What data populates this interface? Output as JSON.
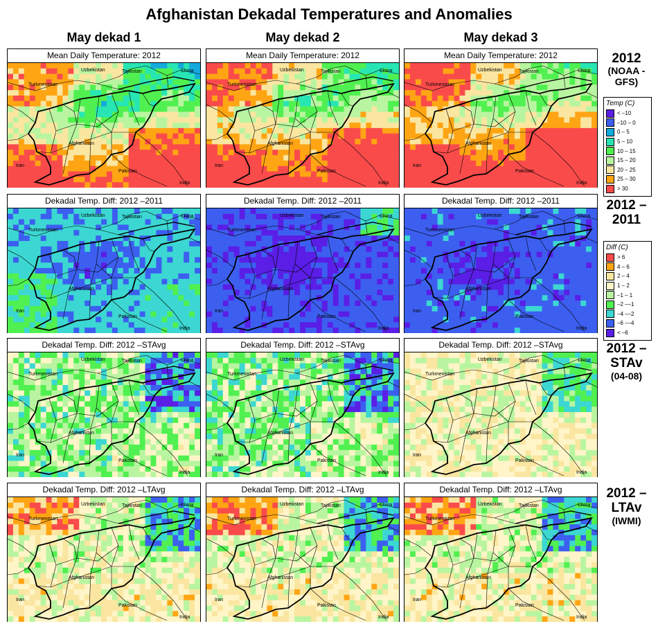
{
  "title": "Afghanistan Dekadal Temperatures and Anomalies",
  "columns": [
    "May dekad 1",
    "May dekad 2",
    "May dekad 3"
  ],
  "rows": [
    {
      "panel_title": "Mean Daily Temperature: 2012",
      "label_main": "2012",
      "label_sub": "(NOAA -GFS)"
    },
    {
      "panel_title": "Dekadal Temp. Diff: 2012 –2011",
      "label_main": "2012 –2011",
      "label_sub": ""
    },
    {
      "panel_title": "Dekadal Temp. Diff: 2012 –STAvg",
      "label_main": "2012 –STAv",
      "label_sub": "(04-08)"
    },
    {
      "panel_title": "Dekadal Temp. Diff: 2012 –LTAvg",
      "label_main": "2012 –LTAv",
      "label_sub": "(IWMI)"
    }
  ],
  "map_labels": {
    "uzbekistan": "Uzbekistan",
    "tajikistan": "Tajikistan",
    "china": "China",
    "turkmenistan": "Turkmenistan",
    "afghanistan": "Afghanistan",
    "iran": "Iran",
    "pakistan": "Pakistan",
    "india": "India"
  },
  "legends": {
    "temp": {
      "title": "Temp (C)",
      "items": [
        {
          "label": "< –10",
          "color": "#5a1ee6"
        },
        {
          "label": "–10 – 0",
          "color": "#3c5ff0"
        },
        {
          "label": "0 – 5",
          "color": "#14aadc"
        },
        {
          "label": "5 – 10",
          "color": "#28e6b4"
        },
        {
          "label": "10 – 15",
          "color": "#50f050"
        },
        {
          "label": "15 – 20",
          "color": "#b9f5a0"
        },
        {
          "label": "20 – 25",
          "color": "#fae6a0"
        },
        {
          "label": "25 – 30",
          "color": "#ffa514"
        },
        {
          "label": "> 30",
          "color": "#fa4b4b"
        }
      ]
    },
    "diff": {
      "title": "Diff (C)",
      "items": [
        {
          "label": "> 6",
          "color": "#fa4b4b"
        },
        {
          "label": "4 – 6",
          "color": "#ffa514"
        },
        {
          "label": "2 – 4",
          "color": "#fae6a0"
        },
        {
          "label": "1 – 2",
          "color": "#fff5c8"
        },
        {
          "label": "–1 – 1",
          "color": "#b9f5a0"
        },
        {
          "label": "–2 ––1",
          "color": "#50f050"
        },
        {
          "label": "–4 ––2",
          "color": "#3cd7d2"
        },
        {
          "label": "–6 ––4",
          "color": "#3c5ff0"
        },
        {
          "label": "< –6",
          "color": "#5a1ee6"
        }
      ]
    }
  }
}
